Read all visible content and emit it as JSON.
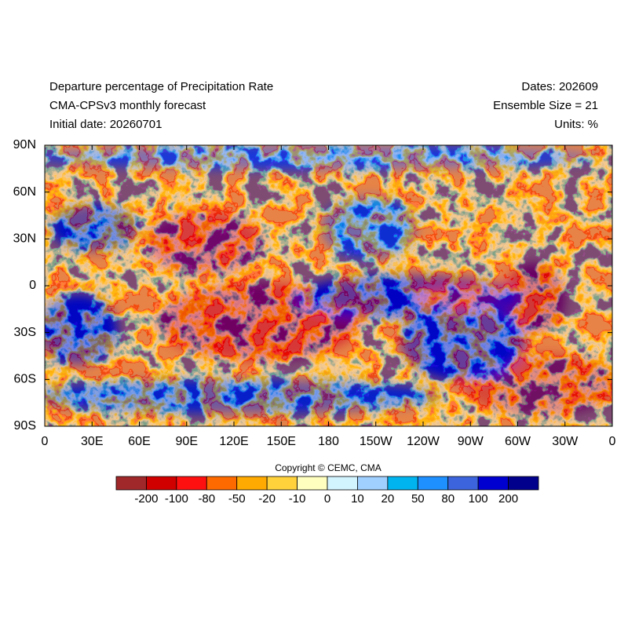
{
  "header": {
    "left": [
      "Departure percentage of Precipitation Rate",
      "CMA-CPSv3 monthly forecast",
      "Initial date: 20260701"
    ],
    "right": [
      "Dates: 202609",
      "Ensemble Size = 21",
      "Units: %"
    ]
  },
  "map": {
    "y_labels": [
      "90N",
      "60N",
      "30N",
      "0",
      "30S",
      "60S",
      "90S"
    ],
    "x_labels": [
      "0",
      "30E",
      "60E",
      "90E",
      "120E",
      "150E",
      "180",
      "150W",
      "120W",
      "90W",
      "60W",
      "30W",
      "0"
    ]
  },
  "copyright": "Copyright © CEMC, CMA",
  "colorbar": {
    "colors": [
      "#a0282a",
      "#d00000",
      "#ff1010",
      "#ff6a00",
      "#ffaa00",
      "#ffd23c",
      "#ffffc0",
      "#d2f4ff",
      "#a0d0ff",
      "#00b4f0",
      "#1e90ff",
      "#3c64dc",
      "#0000d0",
      "#00008c"
    ],
    "labels": [
      "-200",
      "-100",
      "-80",
      "-50",
      "-20",
      "-10",
      "0",
      "10",
      "20",
      "50",
      "80",
      "100",
      "200"
    ]
  }
}
